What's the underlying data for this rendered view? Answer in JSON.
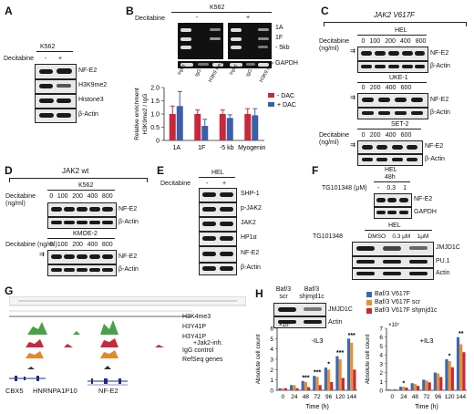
{
  "panels": {
    "A": {
      "letter": "A",
      "cell_line": "K562",
      "treatment_label": "Decitabine",
      "conditions": [
        "-",
        "+"
      ],
      "rows": [
        "NF-E2",
        "H3K9me2",
        "Histone3",
        "β-Actin"
      ]
    },
    "B": {
      "letter": "B",
      "cell_line": "K562",
      "treatment_label": "Decitabine",
      "conditions": [
        "-",
        "+"
      ],
      "gel_rows": [
        "1A",
        "1F",
        "- 5kb",
        "GAPDH"
      ],
      "lanes": [
        "Input",
        "IgG",
        "H3K9 me2",
        "Input",
        "IgG",
        "H3K9 me2"
      ]
    },
    "C": {
      "letter": "C",
      "title": "JAK2 V617F",
      "treatment_label": "Decitabine (ng/ml)",
      "blots": [
        {
          "cell_line": "HEL",
          "doses": [
            "0",
            "100",
            "200",
            "400",
            "800"
          ],
          "rows": [
            "NF-E2",
            "β-Actin"
          ]
        },
        {
          "cell_line": "UKE-1",
          "doses": [
            "0",
            "200",
            "400",
            "600"
          ],
          "rows": [
            "NF-E2",
            "β-Actin"
          ]
        },
        {
          "cell_line": "SET-2",
          "doses": [
            "0",
            "200",
            "400",
            "600"
          ],
          "rows": [
            "NF-E2",
            "β-Actin"
          ]
        }
      ]
    },
    "D": {
      "letter": "D",
      "title": "JAK2 wt",
      "treatment_label": "Decitabine (ng/ml)",
      "blots": [
        {
          "cell_line": "K562",
          "doses": [
            "0",
            "100",
            "200",
            "400",
            "800"
          ],
          "rows": [
            "NF-E2",
            "β-Actin"
          ]
        },
        {
          "cell_line": "KMOE-2",
          "doses": [
            "0",
            "100",
            "200",
            "400",
            "800"
          ],
          "rows": [
            "NF-E2",
            "β-Actin"
          ]
        }
      ]
    },
    "E": {
      "letter": "E",
      "cell_line": "HEL",
      "treatment_label": "Decitabine",
      "conditions": [
        "-",
        "+"
      ],
      "rows": [
        "SHP-1",
        "p-JAK2",
        "JAK2",
        "HP1α",
        "NF-E2",
        "β-Actin"
      ]
    },
    "F": {
      "letter": "F",
      "top": {
        "cell_line": "HEL",
        "time": "48h",
        "treatment_label": "TG101348 (μM)",
        "doses": [
          "-",
          "0.3",
          "1"
        ],
        "rows": [
          "NF-E2",
          "GAPDH"
        ]
      },
      "bottom": {
        "cell_line": "HEL",
        "treatment_label": "TG101348",
        "doses": [
          "DMSO",
          "0.3 μM",
          "1μM"
        ],
        "rows": [
          "JMJD1C",
          "PU.1",
          "Actin"
        ]
      }
    },
    "G": {
      "letter": "G",
      "tracks": [
        "H3K4me3",
        "H3Y41P",
        "H3Y41P",
        "IgG control",
        "RefSeq genes"
      ],
      "annotation": "+Jak2-inh.",
      "genes": [
        "CBX5",
        "HNRNPA1P10",
        "NF-E2"
      ]
    },
    "H": {
      "letter": "H",
      "blot": {
        "lanes": [
          "Baf/3 scr",
          "Baf/3 shjmjd1c"
        ],
        "rows": [
          "JMJD1C",
          "Actin"
        ]
      },
      "legend": [
        "Baf/3 V617F",
        "Baf/3 V617F scr",
        "Baf/3 V617F shjmjd1c"
      ]
    }
  },
  "chart_data": [
    {
      "type": "bar",
      "panel": "B",
      "categories": [
        "1A",
        "1F",
        "-5 kb",
        "Myogenin"
      ],
      "series": [
        {
          "name": "- DAC",
          "values": [
            1.0,
            1.0,
            1.0,
            1.0
          ],
          "errors": [
            0.3,
            0.15,
            0.15,
            0.2
          ],
          "color": "#c8283c"
        },
        {
          "name": "+ DAC",
          "values": [
            1.3,
            0.55,
            0.85,
            0.95
          ],
          "errors": [
            0.55,
            0.25,
            0.12,
            0.25
          ],
          "color": "#3a5fa8"
        }
      ],
      "ylabel": "Relative enrichment H3K9me2 / IgG",
      "ylim": [
        0,
        2.0
      ],
      "yticks": [
        "0",
        "0.5",
        "1.0",
        "1.5",
        "2.0"
      ],
      "legend": "top-right"
    },
    {
      "type": "bar",
      "panel": "H",
      "title": "-IL3",
      "categories": [
        "0",
        "24",
        "48",
        "72",
        "96",
        "120",
        "144"
      ],
      "series": [
        {
          "name": "Baf/3 V617F",
          "values": [
            0.2,
            0.5,
            0.9,
            1.4,
            2.2,
            3.3,
            5.0
          ],
          "color": "#3a68b4"
        },
        {
          "name": "Baf/3 V617F scr",
          "values": [
            0.2,
            0.5,
            0.8,
            1.3,
            2.0,
            3.0,
            4.6
          ],
          "color": "#e8912e"
        },
        {
          "name": "Baf/3 V617F shjmjd1c",
          "values": [
            0.2,
            0.2,
            0.3,
            0.5,
            0.8,
            1.2,
            2.0
          ],
          "color": "#c8283c"
        }
      ],
      "significance": [
        "",
        "",
        "***",
        "***",
        "*",
        "***",
        "***"
      ],
      "xlabel": "Time (h)",
      "ylabel": "Absolute cell count",
      "ylim_label": "×10⁷",
      "ylim": [
        0,
        6
      ],
      "yticks": [
        "0",
        "1",
        "2",
        "3",
        "4",
        "5",
        "6"
      ]
    },
    {
      "type": "bar",
      "panel": "H",
      "title": "+IL3",
      "categories": [
        "0",
        "24",
        "48",
        "72",
        "96",
        "120",
        "144"
      ],
      "series": [
        {
          "name": "Baf/3 V617F",
          "values": [
            0.1,
            0.4,
            0.8,
            1.2,
            2.0,
            3.5,
            6.0
          ],
          "color": "#3a68b4"
        },
        {
          "name": "Baf/3 V617F scr",
          "values": [
            0.1,
            0.4,
            0.7,
            1.1,
            1.9,
            3.3,
            5.2
          ],
          "color": "#e8912e"
        },
        {
          "name": "Baf/3 V617F shjmjd1c",
          "values": [
            0.1,
            0.3,
            0.5,
            0.9,
            1.5,
            2.6,
            4.3
          ],
          "color": "#c8283c"
        }
      ],
      "significance": [
        "",
        "*",
        "",
        "",
        "",
        "*",
        "**"
      ],
      "xlabel": "Time (h)",
      "ylabel": "Absolute cell count",
      "ylim_label": "×10⁷",
      "ylim": [
        0,
        7
      ],
      "yticks": [
        "0",
        "1",
        "2",
        "3",
        "4",
        "5",
        "6",
        "7"
      ]
    }
  ]
}
